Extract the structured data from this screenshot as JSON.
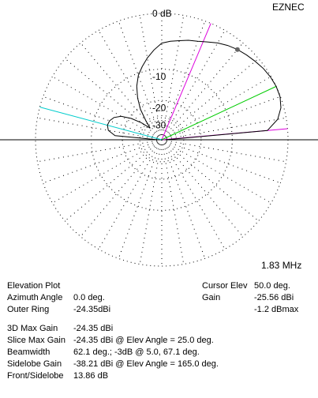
{
  "chart_data": {
    "type": "polar",
    "title": "EZNEC",
    "subtitle": "1.83 MHz",
    "scale": "arrl-log",
    "color": "#000000",
    "grid": true,
    "yticks": [
      {
        "value": 0,
        "label": "0 dB"
      },
      -10,
      -20,
      -30
    ],
    "x": [
      0,
      5,
      10,
      15,
      20,
      25,
      30,
      35,
      40,
      45,
      50,
      55,
      60,
      65,
      70,
      75,
      80,
      85,
      90,
      95,
      100,
      105,
      110,
      115,
      120,
      125,
      130,
      135,
      140,
      145,
      150,
      155,
      160,
      165,
      170,
      175,
      180
    ],
    "values": [
      -60,
      -3,
      -1.2,
      -0.4,
      -0.05,
      0,
      -0.1,
      -0.3,
      -0.6,
      -0.9,
      -1.2,
      -1.6,
      -2.1,
      -2.7,
      -3.2,
      -3.5,
      -3.9,
      -4.2,
      -4.6,
      -5.8,
      -7.2,
      -8.8,
      -10.5,
      -13,
      -16.5,
      -21,
      -28,
      -35,
      -27,
      -21,
      -17,
      -15,
      -14.1,
      -13.86,
      -14.5,
      -17,
      -60
    ],
    "markers": [
      {
        "angle": 5,
        "color": "#dd00dd"
      },
      {
        "angle": 67.1,
        "color": "#dd00dd"
      },
      {
        "angle": 25,
        "color": "#00cc00"
      },
      {
        "angle": 165,
        "color": "#00cccc"
      }
    ],
    "cursor_index": 10
  },
  "panel": {
    "left": [
      {
        "label": "Elevation Plot"
      },
      {
        "label": "Azimuth Angle",
        "value": "0.0 deg."
      },
      {
        "label": "Outer Ring",
        "value": "-24.35dBi"
      }
    ],
    "right": [
      {
        "label": "Cursor Elev",
        "value": "50.0 deg."
      },
      {
        "label": "Gain",
        "value": "-25.56 dBi"
      },
      {
        "value": "-1.2 dBmax"
      }
    ],
    "bottom": [
      {
        "label": "3D Max Gain",
        "value": "-24.35 dBi"
      },
      {
        "label": "Slice Max Gain",
        "value": "-24.35 dBi @ Elev Angle = 25.0 deg."
      },
      {
        "label": "Beamwidth",
        "value": "62.1 deg.; -3dB @ 5.0, 67.1 deg."
      },
      {
        "label": "Sidelobe Gain",
        "value": "-38.21 dBi @ Elev Angle = 165.0 deg."
      },
      {
        "label": "Front/Sidelobe",
        "value": "13.86 dB"
      }
    ]
  }
}
